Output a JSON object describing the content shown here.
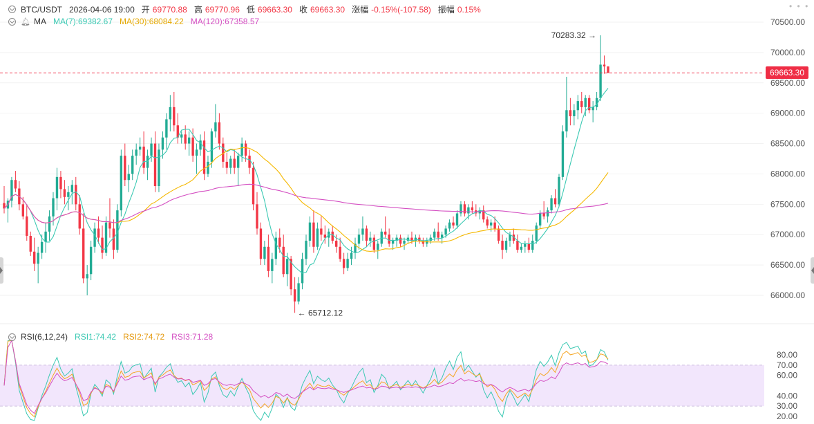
{
  "header": {
    "symbol": "BTC/USDT",
    "datetime": "2026-04-06 19:00",
    "open_label": "开",
    "open_value": "69770.88",
    "high_label": "高",
    "high_value": "69770.96",
    "low_label": "低",
    "low_value": "69663.30",
    "close_label": "收",
    "close_value": "69663.30",
    "change_label": "涨幅",
    "change_value": "-0.15%(-107.58)",
    "amplitude_label": "振幅",
    "amplitude_value": "0.15%"
  },
  "ma_legend": {
    "label": "MA",
    "ma7": "MA(7):69382.67",
    "ma30": "MA(30):68084.22",
    "ma120": "MA(120):67358.57"
  },
  "rsi_legend": {
    "label": "RSI(6,12,24)",
    "rsi1": "RSI1:74.42",
    "rsi2": "RSI2:74.72",
    "rsi3": "RSI3:71.28"
  },
  "colors": {
    "up": "#22ab94",
    "down": "#f23645",
    "ma7": "#3bc9b3",
    "ma30": "#f5b800",
    "ma120": "#d44fc2",
    "rsi1": "#3bc9b3",
    "rsi2": "#f5a623",
    "rsi3": "#d44fc2",
    "rsi_band": "#f2e6fc",
    "grid": "#f2f2f2",
    "last_price": "#ef2d45"
  },
  "price_axis": [
    "70500.00",
    "70000.00",
    "69500.00",
    "69000.00",
    "68500.00",
    "68000.00",
    "67500.00",
    "67000.00",
    "66500.00",
    "66000.00"
  ],
  "rsi_axis": [
    "80.00",
    "70.00",
    "60.00",
    "40.00",
    "30.00",
    "20.00"
  ],
  "last_price": "69663.30",
  "annotations": {
    "high": "70283.32",
    "low": "65712.12"
  },
  "chart_data": {
    "type": "candlestick",
    "symbol": "BTC/USDT",
    "price_range": [
      65500,
      70700
    ],
    "rsi_range": [
      15,
      95
    ],
    "candles": [
      [
        67520,
        67800,
        67350,
        67430
      ],
      [
        67430,
        67600,
        67200,
        67560
      ],
      [
        67560,
        67950,
        67450,
        67900
      ],
      [
        67900,
        68050,
        67700,
        67760
      ],
      [
        67760,
        67880,
        67400,
        67500
      ],
      [
        67500,
        67620,
        67250,
        67300
      ],
      [
        67300,
        67500,
        66900,
        66980
      ],
      [
        66980,
        67050,
        66650,
        66720
      ],
      [
        66720,
        66950,
        66400,
        66520
      ],
      [
        66520,
        66800,
        66200,
        66700
      ],
      [
        66700,
        67000,
        66600,
        66880
      ],
      [
        66880,
        67200,
        66700,
        67050
      ],
      [
        67050,
        67400,
        66900,
        67300
      ],
      [
        67300,
        67700,
        67150,
        67600
      ],
      [
        67600,
        68100,
        67400,
        67950
      ],
      [
        67950,
        68050,
        67600,
        67750
      ],
      [
        67750,
        67900,
        67500,
        67620
      ],
      [
        67620,
        67800,
        67400,
        67700
      ],
      [
        67700,
        67900,
        67500,
        67820
      ],
      [
        67820,
        67950,
        67400,
        67500
      ],
      [
        67500,
        67650,
        67000,
        67100
      ],
      [
        67100,
        67350,
        66200,
        66280
      ],
      [
        66280,
        66500,
        66000,
        66350
      ],
      [
        66350,
        66900,
        66250,
        66800
      ],
      [
        66800,
        67200,
        66700,
        67100
      ],
      [
        67100,
        67300,
        66850,
        66950
      ],
      [
        66950,
        67150,
        66600,
        66700
      ],
      [
        66700,
        67300,
        66650,
        67200
      ],
      [
        67200,
        67600,
        66950,
        67100
      ],
      [
        67100,
        67250,
        66600,
        66750
      ],
      [
        66750,
        67500,
        66700,
        67400
      ],
      [
        67400,
        68400,
        67300,
        68300
      ],
      [
        68300,
        68500,
        67800,
        67900
      ],
      [
        67900,
        68150,
        67700,
        68000
      ],
      [
        68000,
        68400,
        67900,
        68300
      ],
      [
        68300,
        68500,
        68150,
        68400
      ],
      [
        68400,
        68600,
        68300,
        68450
      ],
      [
        68450,
        68700,
        68000,
        68100
      ],
      [
        68100,
        68400,
        67900,
        68300
      ],
      [
        68300,
        68600,
        68200,
        68500
      ],
      [
        68500,
        68700,
        67700,
        67800
      ],
      [
        67800,
        68500,
        67700,
        68400
      ],
      [
        68400,
        68700,
        68250,
        68600
      ],
      [
        68600,
        69000,
        68400,
        68900
      ],
      [
        68900,
        69300,
        68700,
        69100
      ],
      [
        69100,
        69350,
        68700,
        68800
      ],
      [
        68800,
        69000,
        68500,
        68600
      ],
      [
        68600,
        68700,
        68500,
        68650
      ],
      [
        68650,
        68800,
        68400,
        68500
      ],
      [
        68500,
        68700,
        68300,
        68600
      ],
      [
        68600,
        68750,
        68200,
        68300
      ],
      [
        68300,
        68500,
        68000,
        68400
      ],
      [
        68400,
        68650,
        68300,
        68550
      ],
      [
        68550,
        68700,
        67900,
        68000
      ],
      [
        68000,
        68300,
        67950,
        68200
      ],
      [
        68200,
        68750,
        68100,
        68700
      ],
      [
        68700,
        69150,
        68600,
        68850
      ],
      [
        68850,
        69000,
        68400,
        68500
      ],
      [
        68500,
        68600,
        68100,
        68200
      ],
      [
        68200,
        68350,
        68000,
        68100
      ],
      [
        68100,
        68300,
        68000,
        68250
      ],
      [
        68250,
        68400,
        68000,
        68100
      ],
      [
        68100,
        68350,
        67800,
        68300
      ],
      [
        68300,
        68600,
        68200,
        68500
      ],
      [
        68500,
        68550,
        68200,
        68300
      ],
      [
        68300,
        68400,
        68000,
        68100
      ],
      [
        68100,
        68200,
        67400,
        67500
      ],
      [
        67500,
        67700,
        67000,
        67100
      ],
      [
        67100,
        67200,
        66500,
        66600
      ],
      [
        66600,
        66900,
        66500,
        66800
      ],
      [
        66800,
        67000,
        66300,
        66400
      ],
      [
        66400,
        66700,
        66200,
        66600
      ],
      [
        66600,
        67050,
        66500,
        66950
      ],
      [
        66950,
        67100,
        66700,
        66800
      ],
      [
        66800,
        67000,
        66300,
        66350
      ],
      [
        66350,
        66700,
        66150,
        66600
      ],
      [
        66600,
        66650,
        66000,
        66100
      ],
      [
        66100,
        66300,
        65712,
        65900
      ],
      [
        65900,
        66300,
        65850,
        66200
      ],
      [
        66200,
        66700,
        66100,
        66600
      ],
      [
        66600,
        67000,
        66500,
        66900
      ],
      [
        66900,
        67300,
        66800,
        67200
      ],
      [
        67200,
        67400,
        66700,
        66800
      ],
      [
        66800,
        67200,
        66750,
        67100
      ],
      [
        67100,
        67300,
        66900,
        67000
      ],
      [
        67000,
        67150,
        66850,
        66950
      ],
      [
        66950,
        67100,
        66800,
        67050
      ],
      [
        67050,
        67150,
        66850,
        66900
      ],
      [
        66900,
        67000,
        66700,
        66800
      ],
      [
        66800,
        66950,
        66550,
        66600
      ],
      [
        66600,
        66700,
        66350,
        66450
      ],
      [
        66450,
        66700,
        66400,
        66600
      ],
      [
        66600,
        66800,
        66500,
        66700
      ],
      [
        66700,
        66950,
        66600,
        66850
      ],
      [
        66850,
        67100,
        66750,
        67000
      ],
      [
        67000,
        67300,
        66900,
        67100
      ],
      [
        67100,
        67150,
        66800,
        66900
      ],
      [
        66900,
        67050,
        66800,
        66950
      ],
      [
        66950,
        67000,
        66700,
        66750
      ],
      [
        66750,
        66900,
        66600,
        66850
      ],
      [
        66850,
        67100,
        66800,
        67050
      ],
      [
        67050,
        67300,
        66950,
        67000
      ],
      [
        67000,
        67100,
        66800,
        66850
      ],
      [
        66850,
        66950,
        66750,
        66900
      ],
      [
        66900,
        67000,
        66800,
        66950
      ],
      [
        66950,
        67000,
        66800,
        66850
      ],
      [
        66850,
        66950,
        66750,
        66900
      ],
      [
        66900,
        67000,
        66850,
        66950
      ],
      [
        66950,
        67050,
        66850,
        66900
      ],
      [
        66900,
        67000,
        66800,
        66950
      ],
      [
        66950,
        67000,
        66850,
        66900
      ],
      [
        66900,
        66950,
        66800,
        66850
      ],
      [
        66850,
        66950,
        66800,
        66900
      ],
      [
        66900,
        67000,
        66850,
        66950
      ],
      [
        66950,
        67100,
        66900,
        67050
      ],
      [
        67050,
        67200,
        66900,
        66950
      ],
      [
        66950,
        67050,
        66850,
        67000
      ],
      [
        67000,
        67150,
        66950,
        67100
      ],
      [
        67100,
        67250,
        67050,
        67200
      ],
      [
        67200,
        67300,
        67100,
        67150
      ],
      [
        67150,
        67400,
        67100,
        67350
      ],
      [
        67350,
        67550,
        67300,
        67500
      ],
      [
        67500,
        67550,
        67300,
        67350
      ],
      [
        67350,
        67500,
        67250,
        67450
      ],
      [
        67450,
        67550,
        67350,
        67400
      ],
      [
        67400,
        67500,
        67300,
        67350
      ],
      [
        67350,
        67450,
        67250,
        67400
      ],
      [
        67400,
        67480,
        67200,
        67250
      ],
      [
        67250,
        67300,
        67100,
        67150
      ],
      [
        67150,
        67250,
        67050,
        67200
      ],
      [
        67200,
        67300,
        67050,
        67100
      ],
      [
        67100,
        67150,
        66850,
        66900
      ],
      [
        66900,
        67000,
        66600,
        66750
      ],
      [
        66750,
        66950,
        66700,
        66900
      ],
      [
        66900,
        67050,
        66800,
        67000
      ],
      [
        67000,
        67100,
        66850,
        66900
      ],
      [
        66900,
        67000,
        66700,
        66750
      ],
      [
        66750,
        66850,
        66700,
        66800
      ],
      [
        66800,
        66900,
        66700,
        66850
      ],
      [
        66850,
        66950,
        66700,
        66750
      ],
      [
        66750,
        67000,
        66700,
        66900
      ],
      [
        66900,
        67200,
        66850,
        67150
      ],
      [
        67150,
        67400,
        67100,
        67350
      ],
      [
        67350,
        67550,
        67250,
        67300
      ],
      [
        67300,
        67450,
        67200,
        67400
      ],
      [
        67400,
        67650,
        67350,
        67600
      ],
      [
        67600,
        67750,
        67450,
        67500
      ],
      [
        67500,
        68000,
        67450,
        67950
      ],
      [
        67950,
        68800,
        67900,
        68700
      ],
      [
        68700,
        69600,
        68600,
        69050
      ],
      [
        69050,
        69250,
        68800,
        68950
      ],
      [
        68950,
        69150,
        68800,
        69050
      ],
      [
        69050,
        69300,
        68900,
        69200
      ],
      [
        69200,
        69350,
        69000,
        69100
      ],
      [
        69100,
        69300,
        68950,
        69250
      ],
      [
        69250,
        69300,
        69000,
        69050
      ],
      [
        69050,
        69200,
        68850,
        69100
      ],
      [
        69100,
        69350,
        69050,
        69250
      ],
      [
        69250,
        70283,
        69200,
        69800
      ],
      [
        69800,
        69950,
        69650,
        69770
      ],
      [
        69770,
        69771,
        69663,
        69663
      ]
    ],
    "ma7_last": 69382.67,
    "ma30_last": 68084.22,
    "ma120_last": 67358.57,
    "rsi1_last": 74.42,
    "rsi2_last": 74.72,
    "rsi3_last": 71.28
  }
}
